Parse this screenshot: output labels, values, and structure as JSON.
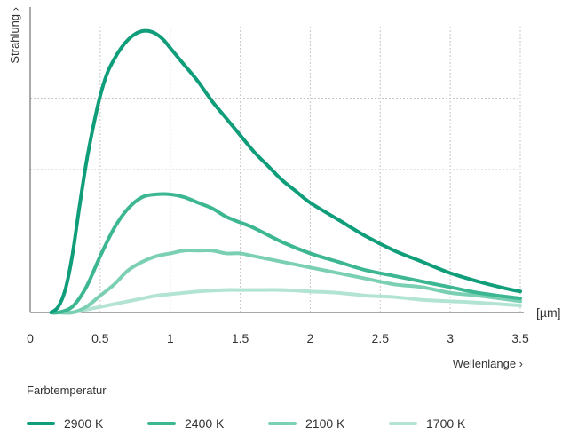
{
  "chart_data": {
    "type": "line",
    "xlabel": "Wellenlänge",
    "ylabel": "Strahlung",
    "xunit": "[µm]",
    "xlim": [
      0,
      3.5
    ],
    "ylim": [
      0,
      1.0
    ],
    "xticks": [
      "0",
      "0.5",
      "1",
      "1.5",
      "2",
      "2.5",
      "3",
      "3.5"
    ],
    "grid": true,
    "legend_title": "Farbtemperatur",
    "legend_placement": "bottom",
    "series": [
      {
        "name": "2900 K",
        "color": "#0f9d7a",
        "x": [
          0.15,
          0.2,
          0.25,
          0.3,
          0.35,
          0.4,
          0.45,
          0.5,
          0.55,
          0.6,
          0.65,
          0.7,
          0.75,
          0.8,
          0.85,
          0.9,
          0.95,
          1.0,
          1.1,
          1.2,
          1.3,
          1.4,
          1.5,
          1.6,
          1.7,
          1.8,
          1.9,
          2.0,
          2.2,
          2.4,
          2.6,
          2.8,
          3.0,
          3.2,
          3.4,
          3.5
        ],
        "y": [
          0.0,
          0.02,
          0.08,
          0.2,
          0.37,
          0.53,
          0.66,
          0.77,
          0.85,
          0.9,
          0.94,
          0.97,
          0.99,
          1.0,
          1.0,
          0.99,
          0.97,
          0.94,
          0.88,
          0.82,
          0.75,
          0.69,
          0.63,
          0.57,
          0.52,
          0.47,
          0.43,
          0.39,
          0.33,
          0.27,
          0.22,
          0.18,
          0.14,
          0.11,
          0.085,
          0.075
        ]
      },
      {
        "name": "2400 K",
        "color": "#3db792",
        "x": [
          0.15,
          0.2,
          0.3,
          0.4,
          0.5,
          0.6,
          0.7,
          0.8,
          0.9,
          1.0,
          1.1,
          1.2,
          1.3,
          1.4,
          1.5,
          1.6,
          1.8,
          2.0,
          2.2,
          2.4,
          2.6,
          2.8,
          3.0,
          3.2,
          3.5
        ],
        "y": [
          0.0,
          0.0,
          0.02,
          0.09,
          0.2,
          0.3,
          0.37,
          0.41,
          0.42,
          0.42,
          0.41,
          0.39,
          0.37,
          0.34,
          0.32,
          0.3,
          0.25,
          0.21,
          0.18,
          0.15,
          0.13,
          0.11,
          0.09,
          0.07,
          0.05
        ]
      },
      {
        "name": "2100 K",
        "color": "#7bd0b3",
        "x": [
          0.15,
          0.2,
          0.3,
          0.4,
          0.5,
          0.6,
          0.7,
          0.8,
          0.9,
          1.0,
          1.1,
          1.2,
          1.3,
          1.4,
          1.5,
          1.6,
          1.8,
          2.0,
          2.2,
          2.4,
          2.6,
          2.8,
          3.0,
          3.2,
          3.5
        ],
        "y": [
          0.0,
          0.0,
          0.0,
          0.02,
          0.06,
          0.1,
          0.15,
          0.18,
          0.2,
          0.21,
          0.22,
          0.22,
          0.22,
          0.21,
          0.21,
          0.2,
          0.18,
          0.16,
          0.14,
          0.12,
          0.1,
          0.09,
          0.07,
          0.06,
          0.04
        ]
      },
      {
        "name": "1700 K",
        "color": "#b3e4d3",
        "x": [
          0.15,
          0.2,
          0.3,
          0.4,
          0.5,
          0.6,
          0.7,
          0.8,
          0.9,
          1.0,
          1.2,
          1.4,
          1.5,
          1.6,
          1.8,
          2.0,
          2.2,
          2.4,
          2.6,
          2.8,
          3.0,
          3.2,
          3.5
        ],
        "y": [
          0.0,
          0.0,
          0.0,
          0.01,
          0.02,
          0.03,
          0.04,
          0.05,
          0.06,
          0.065,
          0.075,
          0.08,
          0.08,
          0.08,
          0.08,
          0.075,
          0.07,
          0.06,
          0.055,
          0.045,
          0.04,
          0.035,
          0.025
        ]
      }
    ]
  }
}
